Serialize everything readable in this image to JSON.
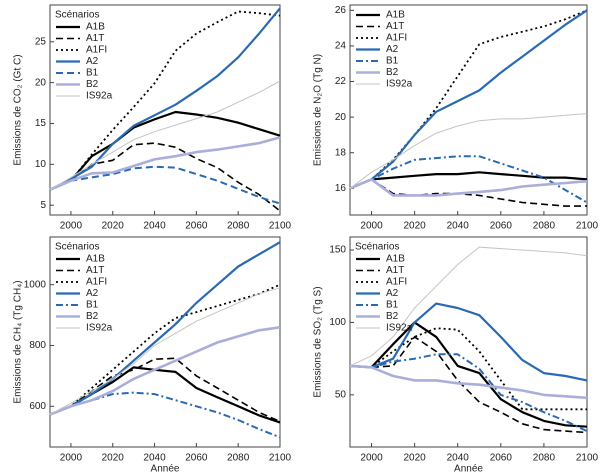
{
  "chart_data": [
    {
      "type": "line",
      "y_label": "Emissions de CO₂ (Gt C)",
      "legend_title": "Scénarios",
      "x": [
        1990,
        2000,
        2010,
        2020,
        2030,
        2040,
        2050,
        2060,
        2070,
        2080,
        2090,
        2100
      ],
      "xlim": [
        1990,
        2100
      ],
      "xticks": [
        2000,
        2020,
        2040,
        2060,
        2080,
        2100
      ],
      "ylim": [
        3.8,
        29.5
      ],
      "yticks": [
        5,
        10,
        15,
        20,
        25
      ],
      "series": [
        {
          "name": "A1B",
          "color": "#000000",
          "dash": "solid",
          "width": 2.2,
          "values": [
            6.9,
            8.0,
            11.0,
            12.5,
            14.5,
            15.5,
            16.4,
            16.1,
            15.7,
            15.1,
            14.3,
            13.5
          ]
        },
        {
          "name": "A1T",
          "color": "#000000",
          "dash": "dash",
          "width": 1.6,
          "values": [
            6.9,
            8.0,
            10.0,
            10.5,
            12.4,
            12.6,
            12.1,
            10.7,
            9.6,
            7.8,
            6.3,
            4.3
          ]
        },
        {
          "name": "A1FI",
          "color": "#000000",
          "dash": "dot",
          "width": 1.8,
          "values": [
            6.9,
            8.0,
            11.2,
            14.2,
            17.0,
            19.9,
            23.9,
            26.0,
            27.4,
            28.7,
            28.5,
            28.2
          ]
        },
        {
          "name": "A2",
          "color": "#2a6ab3",
          "dash": "solid",
          "width": 2.2,
          "values": [
            6.9,
            8.2,
            9.7,
            12.5,
            14.7,
            16.0,
            17.3,
            19.0,
            20.8,
            23.1,
            26.0,
            29.1
          ]
        },
        {
          "name": "B1",
          "color": "#2a6ab3",
          "dash": "dash",
          "width": 2.0,
          "values": [
            6.9,
            8.0,
            8.4,
            8.8,
            9.5,
            9.7,
            9.6,
            8.8,
            8.0,
            7.0,
            6.0,
            5.2
          ]
        },
        {
          "name": "B2",
          "color": "#a9aedb",
          "dash": "solid",
          "width": 2.6,
          "values": [
            6.9,
            8.0,
            8.9,
            9.0,
            9.8,
            10.6,
            11.0,
            11.5,
            11.8,
            12.2,
            12.6,
            13.3
          ]
        },
        {
          "name": "IS92a",
          "color": "#c4c4c4",
          "dash": "solid",
          "width": 1.0,
          "values": [
            6.9,
            8.4,
            10.0,
            11.5,
            13.0,
            14.0,
            14.8,
            15.6,
            16.4,
            17.6,
            18.8,
            20.2
          ]
        }
      ]
    },
    {
      "type": "line",
      "y_label": "Emissions de N₂O (Tg N)",
      "x": [
        1990,
        2000,
        2010,
        2020,
        2030,
        2040,
        2050,
        2060,
        2070,
        2080,
        2090,
        2100
      ],
      "xlim": [
        1990,
        2100
      ],
      "xticks": [
        2000,
        2020,
        2040,
        2060,
        2080,
        2100
      ],
      "ylim": [
        14.5,
        26.3
      ],
      "yticks": [
        16,
        18,
        20,
        22,
        24,
        26
      ],
      "series": [
        {
          "name": "A1B",
          "color": "#000000",
          "dash": "solid",
          "width": 2.2,
          "values": [
            16.0,
            16.5,
            16.6,
            16.7,
            16.8,
            16.8,
            16.9,
            16.8,
            16.7,
            16.6,
            16.6,
            16.5
          ]
        },
        {
          "name": "A1T",
          "color": "#000000",
          "dash": "dash",
          "width": 1.6,
          "values": [
            16.0,
            16.5,
            15.7,
            15.6,
            15.7,
            15.7,
            15.6,
            15.4,
            15.2,
            15.1,
            15.0,
            15.0
          ]
        },
        {
          "name": "A1FI",
          "color": "#000000",
          "dash": "dot",
          "width": 1.8,
          "values": [
            16.0,
            16.5,
            17.6,
            19.0,
            20.5,
            22.3,
            24.1,
            24.5,
            24.8,
            25.1,
            25.5,
            26.0
          ]
        },
        {
          "name": "A2",
          "color": "#2a6ab3",
          "dash": "solid",
          "width": 2.2,
          "values": [
            16.0,
            16.5,
            17.5,
            19.0,
            20.3,
            20.9,
            21.5,
            22.5,
            23.4,
            24.3,
            25.2,
            26.0
          ]
        },
        {
          "name": "B1",
          "color": "#2a6ab3",
          "dash": "dashdot",
          "width": 2.0,
          "values": [
            16.0,
            16.5,
            17.1,
            17.6,
            17.7,
            17.8,
            17.8,
            17.4,
            17.0,
            16.6,
            15.9,
            15.2
          ]
        },
        {
          "name": "B2",
          "color": "#a9aedb",
          "dash": "solid",
          "width": 2.6,
          "values": [
            16.0,
            16.5,
            15.6,
            15.6,
            15.6,
            15.7,
            15.8,
            15.9,
            16.1,
            16.2,
            16.3,
            16.4
          ]
        },
        {
          "name": "IS92a",
          "color": "#c4c4c4",
          "dash": "solid",
          "width": 1.0,
          "values": [
            16.0,
            16.9,
            17.6,
            18.4,
            19.1,
            19.5,
            19.8,
            19.9,
            19.9,
            20.0,
            20.1,
            20.2
          ]
        }
      ]
    },
    {
      "type": "line",
      "y_label": "Emissions de CH₄ (Tg CH₄)",
      "x_label": "Année",
      "legend_title": "Scénarios",
      "x": [
        1990,
        2000,
        2010,
        2020,
        2030,
        2040,
        2050,
        2060,
        2070,
        2080,
        2090,
        2100
      ],
      "xlim": [
        1990,
        2100
      ],
      "xticks": [
        2000,
        2020,
        2040,
        2060,
        2080,
        2100
      ],
      "ylim": [
        466,
        1157
      ],
      "yticks": [
        600,
        800,
        1000
      ],
      "series": [
        {
          "name": "A1B",
          "color": "#000000",
          "dash": "solid",
          "width": 2.2,
          "values": [
            573,
            600,
            640,
            680,
            728,
            720,
            713,
            660,
            630,
            600,
            570,
            547
          ]
        },
        {
          "name": "A1T",
          "color": "#000000",
          "dash": "dash",
          "width": 1.6,
          "values": [
            573,
            600,
            650,
            700,
            720,
            755,
            758,
            700,
            660,
            620,
            580,
            550
          ]
        },
        {
          "name": "A1FI",
          "color": "#000000",
          "dash": "dot",
          "width": 1.8,
          "values": [
            573,
            600,
            660,
            720,
            780,
            840,
            890,
            910,
            930,
            950,
            970,
            1000
          ]
        },
        {
          "name": "A2",
          "color": "#2a6ab3",
          "dash": "solid",
          "width": 2.2,
          "values": [
            573,
            600,
            640,
            690,
            750,
            810,
            870,
            940,
            1000,
            1060,
            1100,
            1140
          ]
        },
        {
          "name": "B1",
          "color": "#2a6ab3",
          "dash": "dashdot",
          "width": 2.0,
          "values": [
            573,
            600,
            620,
            640,
            645,
            640,
            620,
            600,
            580,
            555,
            525,
            498
          ]
        },
        {
          "name": "B2",
          "color": "#a9aedb",
          "dash": "solid",
          "width": 2.6,
          "values": [
            573,
            600,
            620,
            650,
            690,
            720,
            750,
            780,
            810,
            830,
            850,
            860
          ]
        },
        {
          "name": "IS92a",
          "color": "#c4c4c4",
          "dash": "solid",
          "width": 1.0,
          "values": [
            573,
            610,
            650,
            690,
            740,
            800,
            840,
            880,
            910,
            940,
            970,
            990
          ]
        }
      ]
    },
    {
      "type": "line",
      "y_label": "Emissions de SO₂ (Tg S)",
      "x_label": "Année",
      "legend_title": "Scénarios",
      "x": [
        1990,
        2000,
        2010,
        2020,
        2030,
        2040,
        2050,
        2060,
        2070,
        2080,
        2090,
        2100
      ],
      "xlim": [
        1990,
        2100
      ],
      "xticks": [
        2000,
        2020,
        2040,
        2060,
        2080,
        2100
      ],
      "ylim": [
        14,
        159
      ],
      "yticks": [
        50,
        100,
        150
      ],
      "series": [
        {
          "name": "A1B",
          "color": "#000000",
          "dash": "solid",
          "width": 2.2,
          "values": [
            70,
            69,
            85,
            100,
            90,
            70,
            65,
            47,
            38,
            32,
            29,
            28
          ]
        },
        {
          "name": "A1T",
          "color": "#000000",
          "dash": "dash",
          "width": 1.6,
          "values": [
            70,
            69,
            70,
            90,
            80,
            60,
            45,
            38,
            30,
            26,
            25,
            24
          ]
        },
        {
          "name": "A1FI",
          "color": "#000000",
          "dash": "dot",
          "width": 1.8,
          "values": [
            70,
            69,
            80,
            90,
            96,
            95,
            80,
            60,
            40,
            40,
            40,
            40
          ]
        },
        {
          "name": "A2",
          "color": "#2a6ab3",
          "dash": "solid",
          "width": 2.2,
          "values": [
            70,
            69,
            75,
            100,
            113,
            110,
            105,
            90,
            74,
            65,
            63,
            60
          ]
        },
        {
          "name": "B1",
          "color": "#2a6ab3",
          "dash": "dashdot",
          "width": 2.0,
          "values": [
            70,
            69,
            73,
            75,
            78,
            78,
            68,
            50,
            45,
            38,
            32,
            25
          ]
        },
        {
          "name": "B2",
          "color": "#a9aedb",
          "dash": "solid",
          "width": 2.6,
          "values": [
            70,
            69,
            63,
            60,
            60,
            58,
            57,
            55,
            53,
            50,
            49,
            48
          ]
        },
        {
          "name": "IS92a",
          "color": "#c4c4c4",
          "dash": "solid",
          "width": 1.0,
          "values": [
            70,
            77,
            90,
            110,
            125,
            140,
            152,
            151,
            150,
            149,
            148,
            146
          ]
        }
      ]
    }
  ]
}
